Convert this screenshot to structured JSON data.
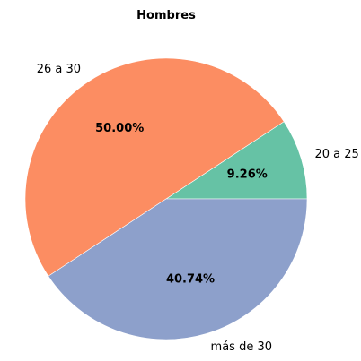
{
  "chart_data": {
    "type": "pie",
    "title": "Hombres",
    "categories": [
      "20 a 25",
      "26 a 30",
      "más de 30"
    ],
    "values": [
      9.26,
      50.0,
      40.74
    ],
    "value_labels": [
      "9.26%",
      "50.00%",
      "40.74%"
    ],
    "colors": [
      "#66c2a5",
      "#fc8d62",
      "#8da0cb"
    ],
    "start_angle": 0,
    "direction": "counterclockwise"
  }
}
